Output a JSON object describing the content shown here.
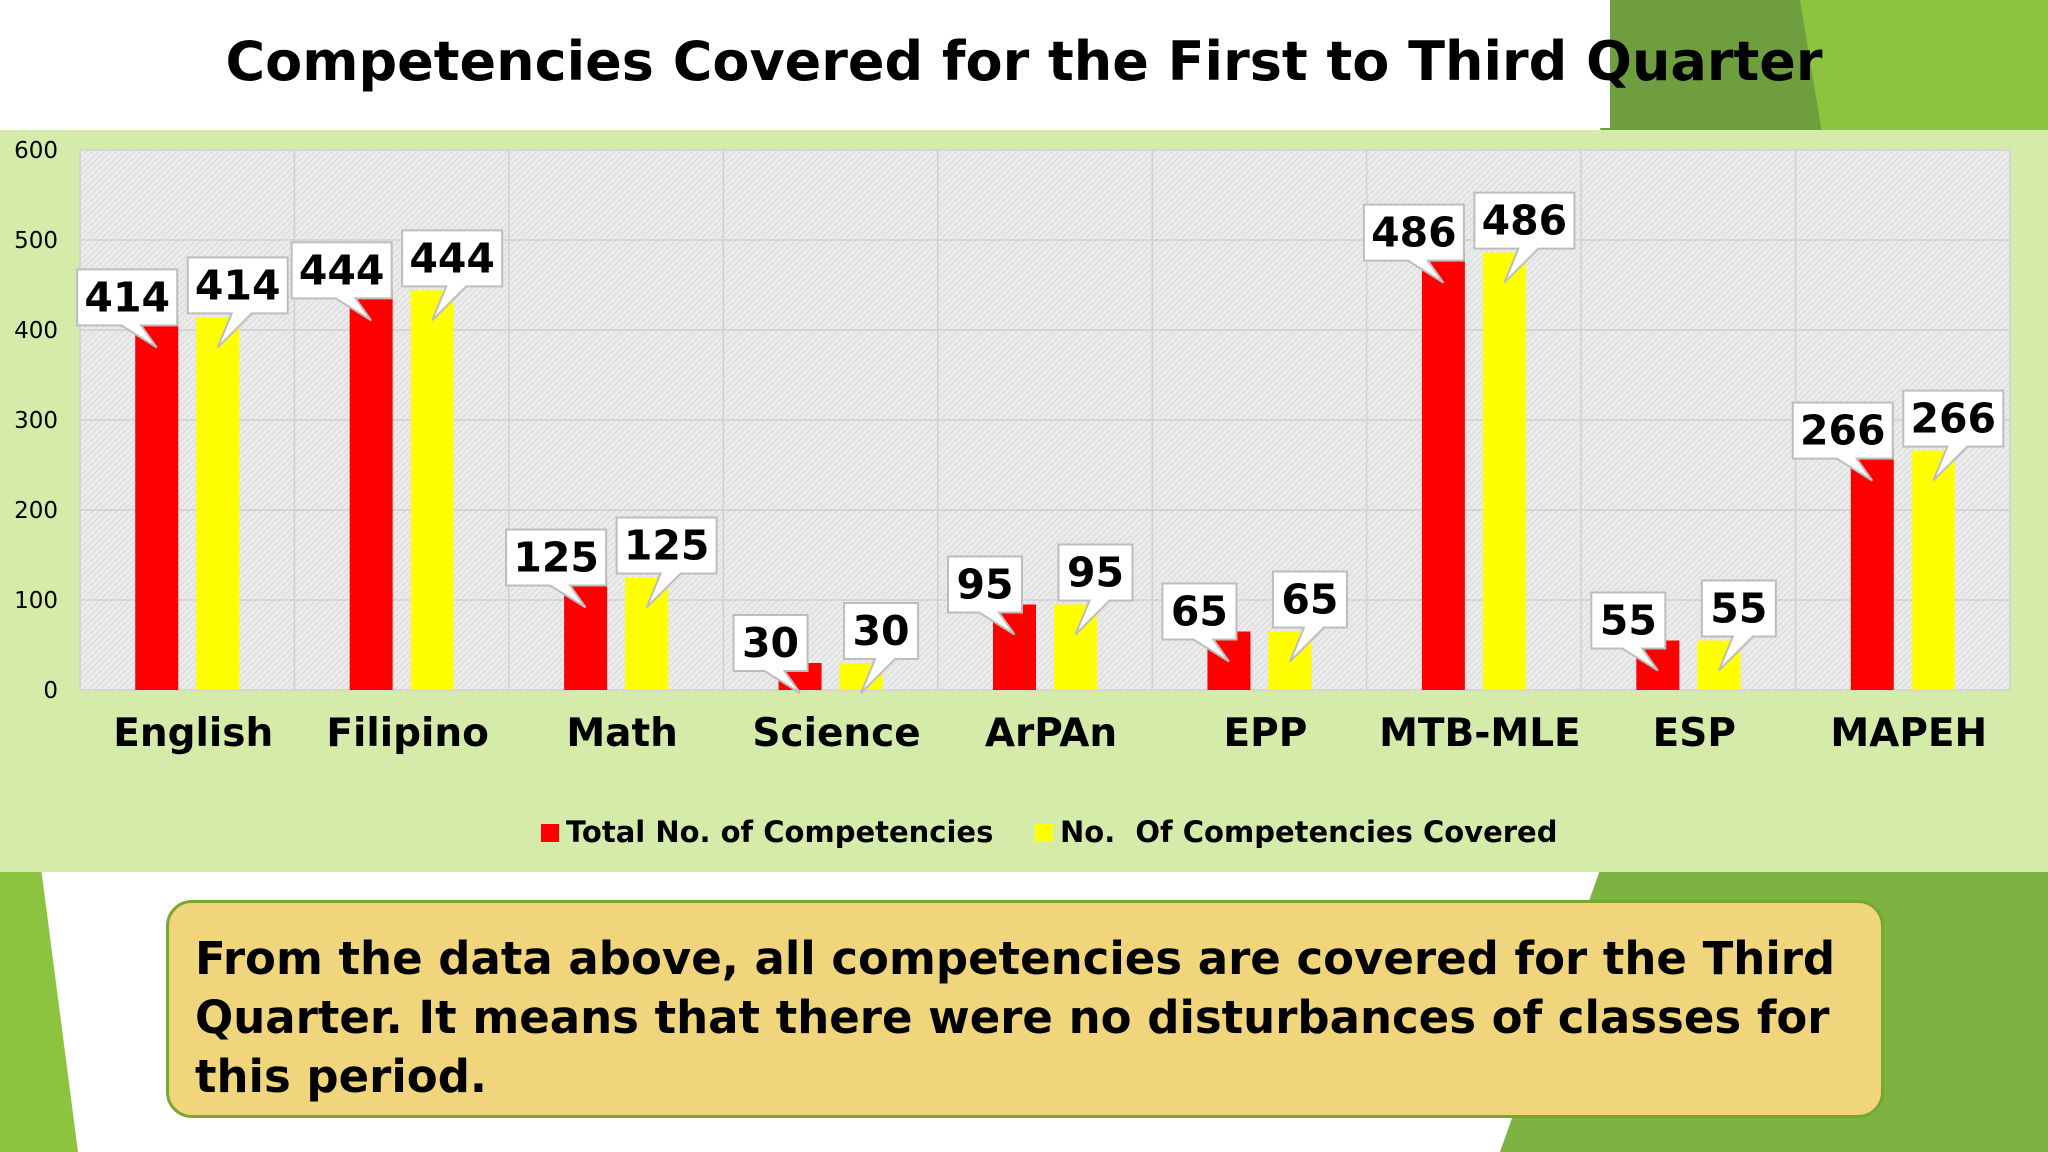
{
  "colors": {
    "panel_bg": "#d5ebaa",
    "plot_bg": "#ebebeb",
    "series_total": "#ff0000",
    "series_covered": "#ffff00",
    "deco_green_dark": "#6f9e3f",
    "deco_green_light": "#8bc34a",
    "note_bg": "#f1d57c",
    "note_border": "#76a72e"
  },
  "chart_data": {
    "type": "bar",
    "title": "Competencies Covered for the First to Third Quarter",
    "categories": [
      "English",
      "Filipino",
      "Math",
      "Science",
      "ArPAn",
      "EPP",
      "MTB-MLE",
      "ESP",
      "MAPEH"
    ],
    "series": [
      {
        "name": "Total No. of Competencies",
        "color": "#ff0000",
        "values": [
          414,
          444,
          125,
          30,
          95,
          65,
          486,
          55,
          266
        ]
      },
      {
        "name": "No.  Of Competencies Covered",
        "color": "#ffff00",
        "values": [
          414,
          444,
          125,
          30,
          95,
          65,
          486,
          55,
          266
        ]
      }
    ],
    "yticks": [
      "0",
      "100",
      "200",
      "300",
      "400",
      "500",
      "600"
    ],
    "ylim": [
      0,
      600
    ],
    "xlabel": "",
    "ylabel": "",
    "legend_position": "bottom",
    "grid": true
  },
  "note": {
    "text": "From the data above, all competencies are covered for the Third Quarter. It means that there were no disturbances of classes for this period."
  }
}
